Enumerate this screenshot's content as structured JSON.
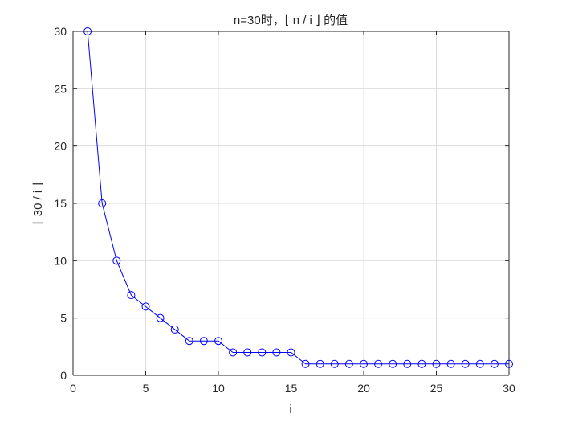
{
  "chart_data": {
    "type": "line",
    "title": "n=30时，⌊ n / i ⌋ 的值",
    "xlabel": "i",
    "ylabel": "⌊ 30 / i ⌋",
    "xlim": [
      0,
      30
    ],
    "ylim": [
      0,
      30
    ],
    "xticks": [
      0,
      5,
      10,
      15,
      20,
      25,
      30
    ],
    "yticks": [
      0,
      5,
      10,
      15,
      20,
      25,
      30
    ],
    "grid": true,
    "marker": "circle",
    "colors": {
      "series": "#0000ff",
      "grid": "#dcdcdc",
      "axis": "#262626"
    },
    "series": [
      {
        "x": [
          1,
          2,
          3,
          4,
          5,
          6,
          7,
          8,
          9,
          10,
          11,
          12,
          13,
          14,
          15,
          16,
          17,
          18,
          19,
          20,
          21,
          22,
          23,
          24,
          25,
          26,
          27,
          28,
          29,
          30
        ],
        "values": [
          30,
          15,
          10,
          7,
          6,
          5,
          4,
          3,
          3,
          3,
          2,
          2,
          2,
          2,
          2,
          1,
          1,
          1,
          1,
          1,
          1,
          1,
          1,
          1,
          1,
          1,
          1,
          1,
          1,
          1
        ]
      }
    ]
  }
}
